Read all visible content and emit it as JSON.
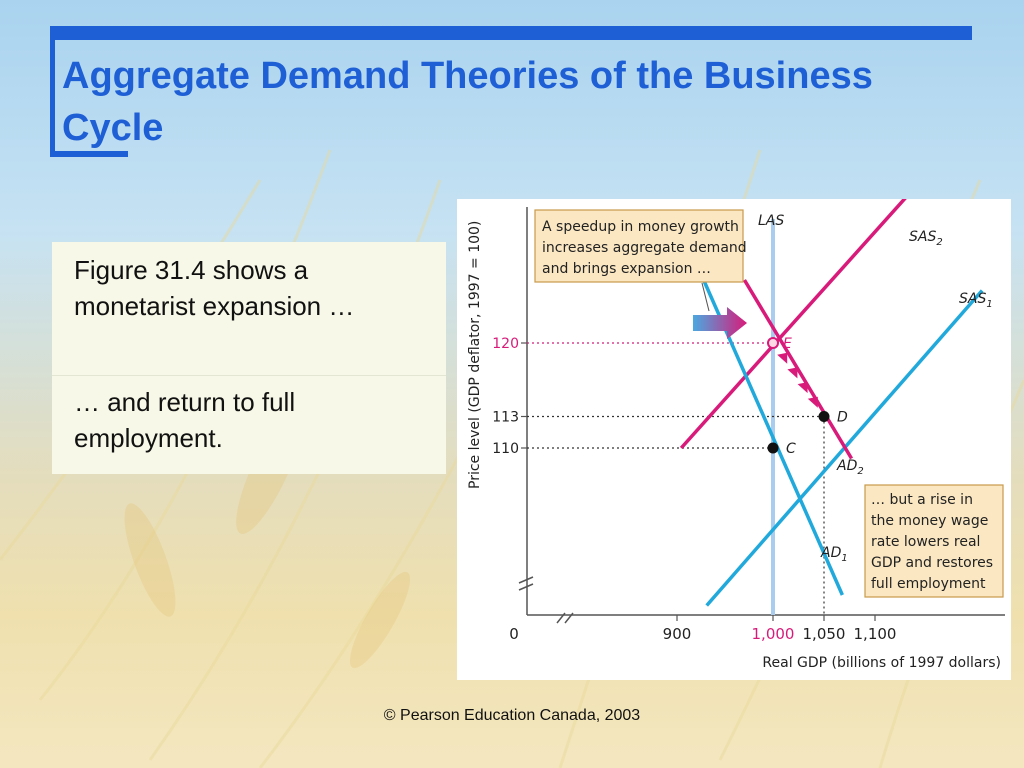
{
  "slide": {
    "title": "Aggregate Demand Theories of the Business Cycle",
    "accent_color": "#1f5fd6",
    "text": {
      "point1": "Figure 31.4 shows a monetarist expansion …",
      "point2": "… and return to full employment."
    },
    "footer": "© Pearson Education Canada, 2003"
  },
  "chart_data": {
    "type": "line",
    "x_axis": {
      "label": "Real GDP (billions of 1997 dollars)",
      "ticks": [
        "0",
        "900",
        "1,000",
        "1,050",
        "1,100"
      ],
      "highlight_tick": "1,000",
      "break": true
    },
    "y_axis": {
      "label": "Price level (GDP deflator, 1997 = 100)",
      "ticks": [
        "110",
        "113",
        "120"
      ],
      "highlight_tick": "120",
      "break": true
    },
    "series": [
      {
        "name": "LAS",
        "color": "#a9cdee",
        "points": [
          [
            1000,
            100
          ],
          [
            1000,
            135
          ]
        ]
      },
      {
        "name": "SAS",
        "sub": "1",
        "color": "#21a9dc",
        "points": [
          [
            935,
            95
          ],
          [
            1205,
            125
          ]
        ]
      },
      {
        "name": "SAS",
        "sub": "2",
        "color": "#d81b7a",
        "points": [
          [
            910,
            110
          ],
          [
            1150,
            136
          ]
        ]
      },
      {
        "name": "AD",
        "sub": "1",
        "color": "#21a9dc",
        "points": [
          [
            932,
            126
          ],
          [
            1068,
            96
          ]
        ]
      },
      {
        "name": "AD",
        "sub": "2",
        "color": "#d81b7a",
        "points": [
          [
            972,
            126
          ],
          [
            1077,
            109
          ]
        ]
      }
    ],
    "points": [
      {
        "label": "C",
        "x": 1000,
        "y": 110,
        "color": "#111111"
      },
      {
        "label": "D",
        "x": 1050,
        "y": 113,
        "color": "#111111"
      },
      {
        "label": "E",
        "x": 1000,
        "y": 120,
        "color": "#d81b7a",
        "hollow": true
      }
    ],
    "annotations": [
      {
        "id": "note-money-growth",
        "text": "A speedup in money growth increases aggregate demand and brings expansion …",
        "lines": [
          "A speedup in money growth",
          "increases aggregate demand",
          "and brings expansion …"
        ]
      },
      {
        "id": "note-money-wage",
        "text": "… but a rise in the money wage rate lowers real GDP and restores full employment",
        "lines": [
          "… but a rise in",
          "the money wage",
          "rate lowers real",
          "GDP and restores",
          "full employment"
        ]
      }
    ],
    "grid": false,
    "legend": "none"
  }
}
